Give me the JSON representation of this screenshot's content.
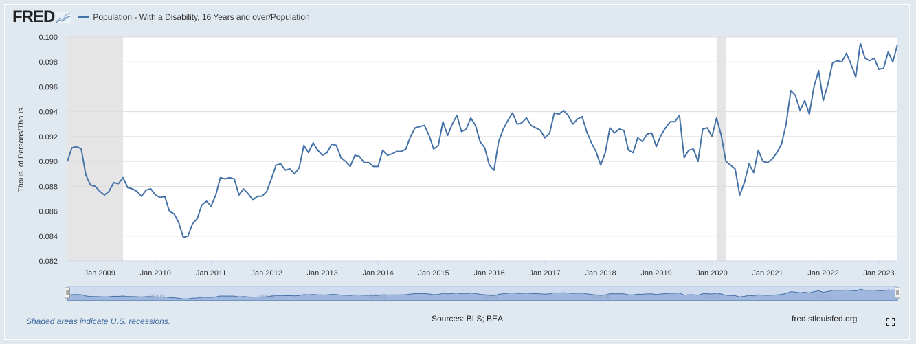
{
  "header": {
    "logo_text": "FRED",
    "legend_label": "Population - With a Disability, 16 Years and over/Population"
  },
  "footer": {
    "recession_note": "Shaded areas indicate U.S. recessions.",
    "sources": "Sources: BLS; BEA",
    "site": "fred.stlouisfed.org"
  },
  "colors": {
    "series": "#4572a7",
    "recession": "#e5e5e5",
    "background": "#e1e9f0"
  },
  "icons": {
    "logo_graph": "fred-graph-icon",
    "fullscreen": "fullscreen-icon"
  },
  "chart_data": {
    "type": "line",
    "ylabel": "Thous. of Persons/Thous.",
    "ylim": [
      0.082,
      0.1
    ],
    "yticks": [
      "0.082",
      "0.084",
      "0.086",
      "0.088",
      "0.090",
      "0.092",
      "0.094",
      "0.096",
      "0.098",
      "0.100"
    ],
    "xticks": [
      "Jan 2009",
      "Jan 2010",
      "Jan 2011",
      "Jan 2012",
      "Jan 2013",
      "Jan 2014",
      "Jan 2015",
      "Jan 2016",
      "Jan 2017",
      "Jan 2018",
      "Jan 2019",
      "Jan 2020",
      "Jan 2021",
      "Jan 2022",
      "Jan 2023"
    ],
    "xlim": [
      "2008-06",
      "2023-05"
    ],
    "recessions": [
      [
        "2008-06",
        "2009-06"
      ],
      [
        "2020-02",
        "2020-04"
      ]
    ],
    "navigator_labels": [
      "2010",
      "2012",
      "2014",
      "2016",
      "2018",
      "2020",
      "2022"
    ],
    "series": [
      {
        "start": "2008-06",
        "values": [
          0.09,
          0.0911,
          0.0912,
          0.091,
          0.0889,
          0.0881,
          0.088,
          0.0876,
          0.0873,
          0.0876,
          0.0883,
          0.0882,
          0.0887,
          0.0879,
          0.0878,
          0.0876,
          0.0872,
          0.0877,
          0.0878,
          0.0873,
          0.0871,
          0.0872,
          0.086,
          0.0858,
          0.0851,
          0.0839,
          0.084,
          0.085,
          0.0854,
          0.0865,
          0.0868,
          0.0864,
          0.0873,
          0.0887,
          0.0886,
          0.0887,
          0.0886,
          0.0873,
          0.0878,
          0.0874,
          0.0869,
          0.0872,
          0.0872,
          0.0876,
          0.0886,
          0.0897,
          0.0898,
          0.0893,
          0.0894,
          0.089,
          0.0895,
          0.0913,
          0.0907,
          0.0915,
          0.0909,
          0.0905,
          0.0907,
          0.0914,
          0.0913,
          0.0903,
          0.09,
          0.0896,
          0.0905,
          0.0904,
          0.0899,
          0.0899,
          0.0896,
          0.0896,
          0.0909,
          0.0905,
          0.0906,
          0.0908,
          0.0908,
          0.091,
          0.092,
          0.0927,
          0.0928,
          0.0929,
          0.0921,
          0.091,
          0.0913,
          0.0932,
          0.0921,
          0.093,
          0.0937,
          0.0924,
          0.0926,
          0.0935,
          0.0929,
          0.0916,
          0.0911,
          0.0897,
          0.0893,
          0.0916,
          0.0926,
          0.0933,
          0.0939,
          0.093,
          0.0931,
          0.0935,
          0.0929,
          0.0927,
          0.0925,
          0.0919,
          0.0923,
          0.0939,
          0.0938,
          0.0941,
          0.0937,
          0.093,
          0.0934,
          0.0936,
          0.0924,
          0.0915,
          0.0908,
          0.0897,
          0.0907,
          0.0927,
          0.0923,
          0.0926,
          0.0925,
          0.0909,
          0.0907,
          0.0919,
          0.0916,
          0.0922,
          0.0923,
          0.0912,
          0.0921,
          0.0927,
          0.0932,
          0.0932,
          0.0937,
          0.0903,
          0.0909,
          0.091,
          0.09,
          0.0926,
          0.0927,
          0.092,
          0.0935,
          0.0921,
          0.09,
          0.0897,
          0.0894,
          0.0873,
          0.0883,
          0.0898,
          0.0891,
          0.0909,
          0.09,
          0.0899,
          0.0902,
          0.0907,
          0.0914,
          0.093,
          0.0957,
          0.0953,
          0.0941,
          0.0949,
          0.0938,
          0.096,
          0.0973,
          0.0949,
          0.0962,
          0.0979,
          0.0981,
          0.098,
          0.0987,
          0.0978,
          0.0968,
          0.0995,
          0.0983,
          0.0981,
          0.0983,
          0.0974,
          0.0975,
          0.0988,
          0.098,
          0.0994
        ]
      }
    ]
  }
}
